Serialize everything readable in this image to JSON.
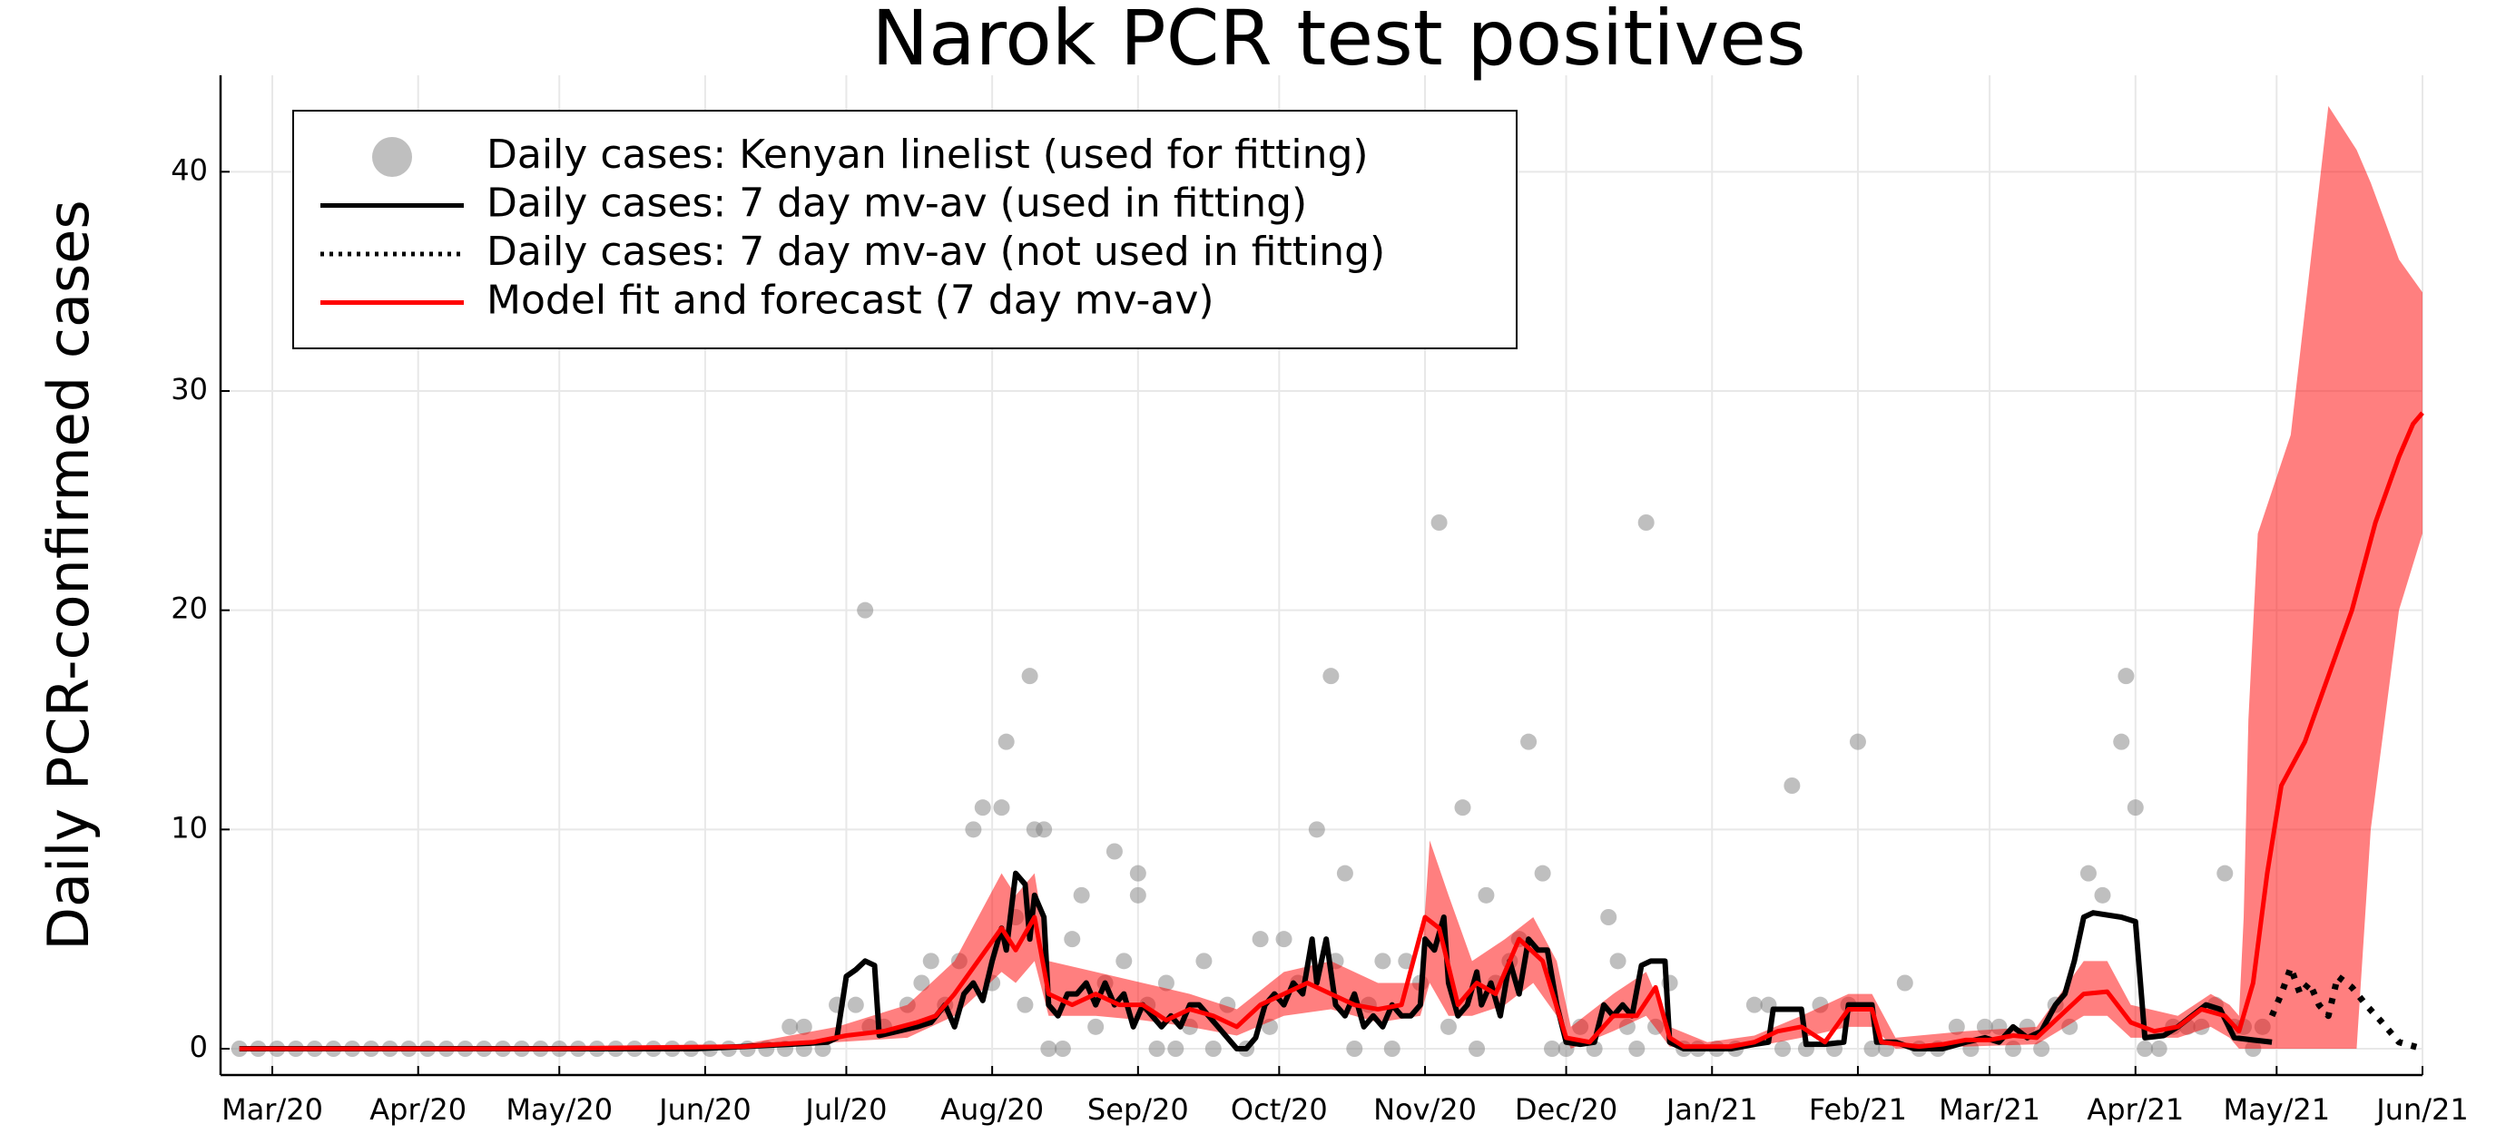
{
  "chart_data": {
    "type": "line",
    "title": "Narok PCR test positives",
    "y_label": "Daily PCR-confirmed cases",
    "xlim": [
      -11,
      457
    ],
    "ylim": [
      -1.2,
      44.4
    ],
    "xticks": [
      {
        "value": 0,
        "label": "Mar/20"
      },
      {
        "value": 31,
        "label": "Apr/20"
      },
      {
        "value": 61,
        "label": "May/20"
      },
      {
        "value": 92,
        "label": "Jun/20"
      },
      {
        "value": 122,
        "label": "Jul/20"
      },
      {
        "value": 153,
        "label": "Aug/20"
      },
      {
        "value": 184,
        "label": "Sep/20"
      },
      {
        "value": 214,
        "label": "Oct/20"
      },
      {
        "value": 245,
        "label": "Nov/20"
      },
      {
        "value": 275,
        "label": "Dec/20"
      },
      {
        "value": 306,
        "label": "Jan/21"
      },
      {
        "value": 337,
        "label": "Feb/21"
      },
      {
        "value": 365,
        "label": "Mar/21"
      },
      {
        "value": 396,
        "label": "Apr/21"
      },
      {
        "value": 426,
        "label": "May/21"
      },
      {
        "value": 457,
        "label": "Jun/21"
      }
    ],
    "yticks": [
      0,
      10,
      20,
      30,
      40
    ],
    "grid": true,
    "legend": "top-left",
    "band": {
      "color": "#ff0000",
      "x": [
        -7,
        100,
        120,
        135,
        145,
        150,
        155,
        158,
        162,
        165,
        175,
        185,
        195,
        205,
        215,
        225,
        235,
        244,
        246,
        250,
        255,
        262,
        268,
        273,
        276,
        285,
        292,
        297,
        305,
        315,
        325,
        335,
        340,
        345,
        360,
        375,
        385,
        390,
        395,
        405,
        412,
        416,
        418,
        419,
        420,
        422,
        429,
        437,
        443,
        446,
        452,
        457
      ],
      "lower": [
        0,
        0,
        0.3,
        0.5,
        1.5,
        2.5,
        3.5,
        3,
        4,
        1.5,
        1.5,
        1.3,
        1,
        0.6,
        1.5,
        1.8,
        1.2,
        1.5,
        3,
        1.5,
        1.5,
        2,
        3,
        1.5,
        0,
        0.8,
        1.5,
        0.1,
        0,
        0.1,
        0.5,
        1,
        1,
        0,
        0.1,
        0.2,
        1.5,
        1.5,
        0.5,
        0.5,
        1,
        0.5,
        0,
        0,
        0,
        0,
        0,
        0,
        0,
        10,
        20,
        23.5
      ],
      "upper": [
        0,
        0.2,
        1,
        2,
        4,
        6,
        8,
        7,
        8,
        4,
        3.5,
        3,
        2.5,
        1.8,
        3.5,
        4,
        3,
        3,
        9.5,
        7,
        4,
        5,
        6,
        4,
        1,
        2.5,
        3.5,
        1,
        0.3,
        0.6,
        1.5,
        2.5,
        2.5,
        0.5,
        0.8,
        1,
        4,
        4,
        2,
        1.5,
        2.5,
        2,
        1.5,
        6,
        15,
        23.5,
        28,
        43,
        41,
        39.5,
        36,
        34.5
      ]
    },
    "series": [
      {
        "name": "Daily cases: Kenyan linelist (used for fitting)",
        "type": "scatter",
        "color": "#808080",
        "x": [
          -7,
          -3,
          1,
          5,
          9,
          13,
          17,
          21,
          25,
          29,
          33,
          37,
          41,
          45,
          49,
          53,
          57,
          61,
          65,
          69,
          73,
          77,
          81,
          85,
          89,
          93,
          97,
          101,
          105,
          109,
          113,
          117,
          110,
          113,
          120,
          124,
          126,
          127,
          130,
          135,
          138,
          140,
          143,
          146,
          149,
          151,
          153,
          155,
          156,
          158,
          160,
          161,
          162,
          164,
          165,
          168,
          170,
          172,
          175,
          177,
          179,
          181,
          184,
          184,
          186,
          188,
          190,
          192,
          195,
          198,
          200,
          203,
          207,
          210,
          212,
          215,
          218,
          222,
          225,
          226,
          228,
          230,
          233,
          236,
          238,
          241,
          244,
          248,
          250,
          253,
          256,
          258,
          260,
          263,
          265,
          267,
          270,
          272,
          275,
          278,
          281,
          284,
          286,
          288,
          290,
          292,
          294,
          297,
          300,
          303,
          307,
          311,
          315,
          318,
          321,
          323,
          326,
          329,
          332,
          335,
          337,
          340,
          343,
          347,
          350,
          354,
          358,
          361,
          364,
          367,
          370,
          373,
          376,
          379,
          382,
          386,
          389,
          393,
          394,
          396,
          398,
          401,
          404,
          407,
          410,
          413,
          415,
          417,
          419,
          421,
          423
        ],
        "values": [
          0,
          0,
          0,
          0,
          0,
          0,
          0,
          0,
          0,
          0,
          0,
          0,
          0,
          0,
          0,
          0,
          0,
          0,
          0,
          0,
          0,
          0,
          0,
          0,
          0,
          0,
          0,
          0,
          0,
          0,
          0,
          0,
          1,
          1,
          2,
          2,
          20,
          1,
          1,
          2,
          3,
          4,
          2,
          4,
          10,
          11,
          3,
          11,
          14,
          6,
          2,
          17,
          10,
          10,
          0,
          0,
          5,
          7,
          1,
          3,
          9,
          4,
          8,
          7,
          2,
          0,
          3,
          0,
          1,
          4,
          0,
          2,
          0,
          5,
          1,
          5,
          3,
          10,
          17,
          4,
          8,
          0,
          2,
          4,
          0,
          4,
          3,
          24,
          1,
          11,
          0,
          7,
          3,
          4,
          5,
          14,
          8,
          0,
          0,
          1,
          0,
          6,
          4,
          1,
          0,
          24,
          1,
          3,
          0,
          0,
          0,
          0,
          2,
          2,
          0,
          12,
          0,
          2,
          0,
          2,
          14,
          0,
          0,
          3,
          0,
          0,
          1,
          0,
          1,
          1,
          0,
          1,
          0,
          2,
          1,
          8,
          7,
          14,
          17,
          11,
          0,
          0,
          1,
          1,
          1,
          2,
          8,
          1,
          1,
          0,
          1
        ]
      },
      {
        "name": "Daily cases: 7 day mv-av (used in fitting)",
        "type": "line",
        "color": "#000000",
        "dash": "solid",
        "x": [
          -7,
          0,
          30,
          60,
          90,
          100,
          110,
          118,
          120,
          122,
          124,
          126,
          128,
          129,
          133,
          137,
          140,
          143,
          145,
          147,
          149,
          151,
          153,
          155,
          156,
          158,
          160,
          161,
          162,
          164,
          165,
          167,
          169,
          171,
          173,
          175,
          177,
          179,
          181,
          183,
          185,
          187,
          189,
          191,
          193,
          195,
          197,
          199,
          201,
          203,
          205,
          207,
          209,
          211,
          213,
          215,
          217,
          219,
          221,
          222,
          224,
          226,
          228,
          230,
          232,
          234,
          236,
          238,
          240,
          242,
          244,
          245,
          247,
          249,
          250,
          252,
          254,
          256,
          257,
          259,
          261,
          263,
          265,
          267,
          269,
          271,
          273,
          275,
          278,
          281,
          283,
          285,
          287,
          289,
          291,
          293,
          296,
          297,
          300,
          305,
          310,
          315,
          318,
          319,
          322,
          325,
          326,
          330,
          334,
          335,
          340,
          341,
          345,
          349,
          355,
          360,
          364,
          367,
          370,
          373,
          376,
          379,
          381,
          383,
          385,
          387,
          393,
          396,
          398,
          402,
          405,
          408,
          411,
          414,
          417,
          421,
          425
        ],
        "values": [
          0,
          0,
          0,
          0,
          0,
          0.1,
          0.2,
          0.3,
          0.5,
          3.3,
          3.6,
          4,
          3.8,
          0.6,
          0.8,
          1,
          1.2,
          2,
          1,
          2.5,
          3,
          2.2,
          4,
          5.5,
          4.5,
          8,
          7.5,
          5,
          7,
          6,
          2,
          1.5,
          2.5,
          2.5,
          3,
          2,
          3,
          2,
          2.5,
          1,
          2,
          1.5,
          1,
          1.5,
          1,
          2,
          2,
          1.5,
          1,
          0.5,
          0,
          0,
          0.5,
          2,
          2.5,
          2,
          3,
          2.5,
          5,
          3,
          5,
          2,
          1.5,
          2.5,
          1,
          1.5,
          1,
          2,
          1.5,
          1.5,
          2,
          5,
          4.5,
          6,
          3,
          1.5,
          2,
          3.5,
          2,
          3,
          1.5,
          4,
          2.5,
          5,
          4.5,
          4.5,
          2,
          0.3,
          0.2,
          0.3,
          2,
          1.5,
          2,
          1.5,
          3.8,
          4,
          4,
          0.3,
          0,
          0,
          0,
          0.2,
          0.3,
          1.8,
          1.8,
          1.8,
          0.2,
          0.2,
          0.3,
          2,
          2,
          0.3,
          0.3,
          0,
          0,
          0.3,
          0.5,
          0.3,
          1,
          0.5,
          0.8,
          2,
          2.5,
          4,
          6,
          6.2,
          6,
          5.8,
          0.5,
          0.6,
          1,
          1.5,
          2,
          1.8,
          0.5,
          0.4,
          0.3
        ]
      },
      {
        "name": "Daily cases: 7 day mv-av (not used in fitting)",
        "type": "line",
        "color": "#000000",
        "dash": "dotted",
        "x": [
          425,
          427,
          429,
          431,
          433,
          435,
          437,
          439,
          442,
          445,
          448,
          452,
          457
        ],
        "values": [
          1.5,
          2.5,
          3.7,
          2.5,
          3,
          2,
          1.5,
          3.3,
          2.8,
          2,
          1.3,
          0.3,
          0
        ]
      },
      {
        "name": "Model fit and forecast (7 day mv-av)",
        "type": "line",
        "color": "#ff0000",
        "dash": "solid",
        "x": [
          -7,
          60,
          100,
          115,
          122,
          130,
          137,
          141,
          145,
          150,
          155,
          158,
          162,
          165,
          170,
          175,
          180,
          185,
          190,
          195,
          200,
          205,
          210,
          215,
          220,
          225,
          230,
          235,
          240,
          245,
          248,
          252,
          256,
          260,
          265,
          270,
          275,
          280,
          285,
          290,
          294,
          297,
          300,
          310,
          315,
          320,
          325,
          330,
          335,
          340,
          342,
          350,
          355,
          360,
          365,
          370,
          375,
          380,
          385,
          390,
          395,
          400,
          405,
          410,
          415,
          418,
          421,
          424,
          427,
          432,
          437,
          442,
          447,
          452,
          455,
          457
        ],
        "values": [
          0,
          0,
          0.1,
          0.3,
          0.6,
          0.8,
          1.2,
          1.5,
          2.5,
          4,
          5.5,
          4.5,
          6,
          2.5,
          2,
          2.5,
          2,
          2,
          1.3,
          1.8,
          1.5,
          1,
          2,
          2.5,
          3,
          2.5,
          2,
          1.8,
          2,
          6,
          5.5,
          2,
          3,
          2.5,
          5,
          4,
          0.5,
          0.3,
          1.5,
          1.5,
          2.8,
          0.5,
          0.1,
          0.1,
          0.3,
          0.8,
          1,
          0.3,
          1.8,
          1.8,
          0.3,
          0.1,
          0.2,
          0.4,
          0.4,
          0.6,
          0.5,
          1.5,
          2.5,
          2.6,
          1.2,
          0.8,
          1,
          1.8,
          1.5,
          0.8,
          3,
          8,
          12,
          14,
          17,
          20,
          24,
          27,
          28.5,
          29
        ]
      }
    ]
  }
}
